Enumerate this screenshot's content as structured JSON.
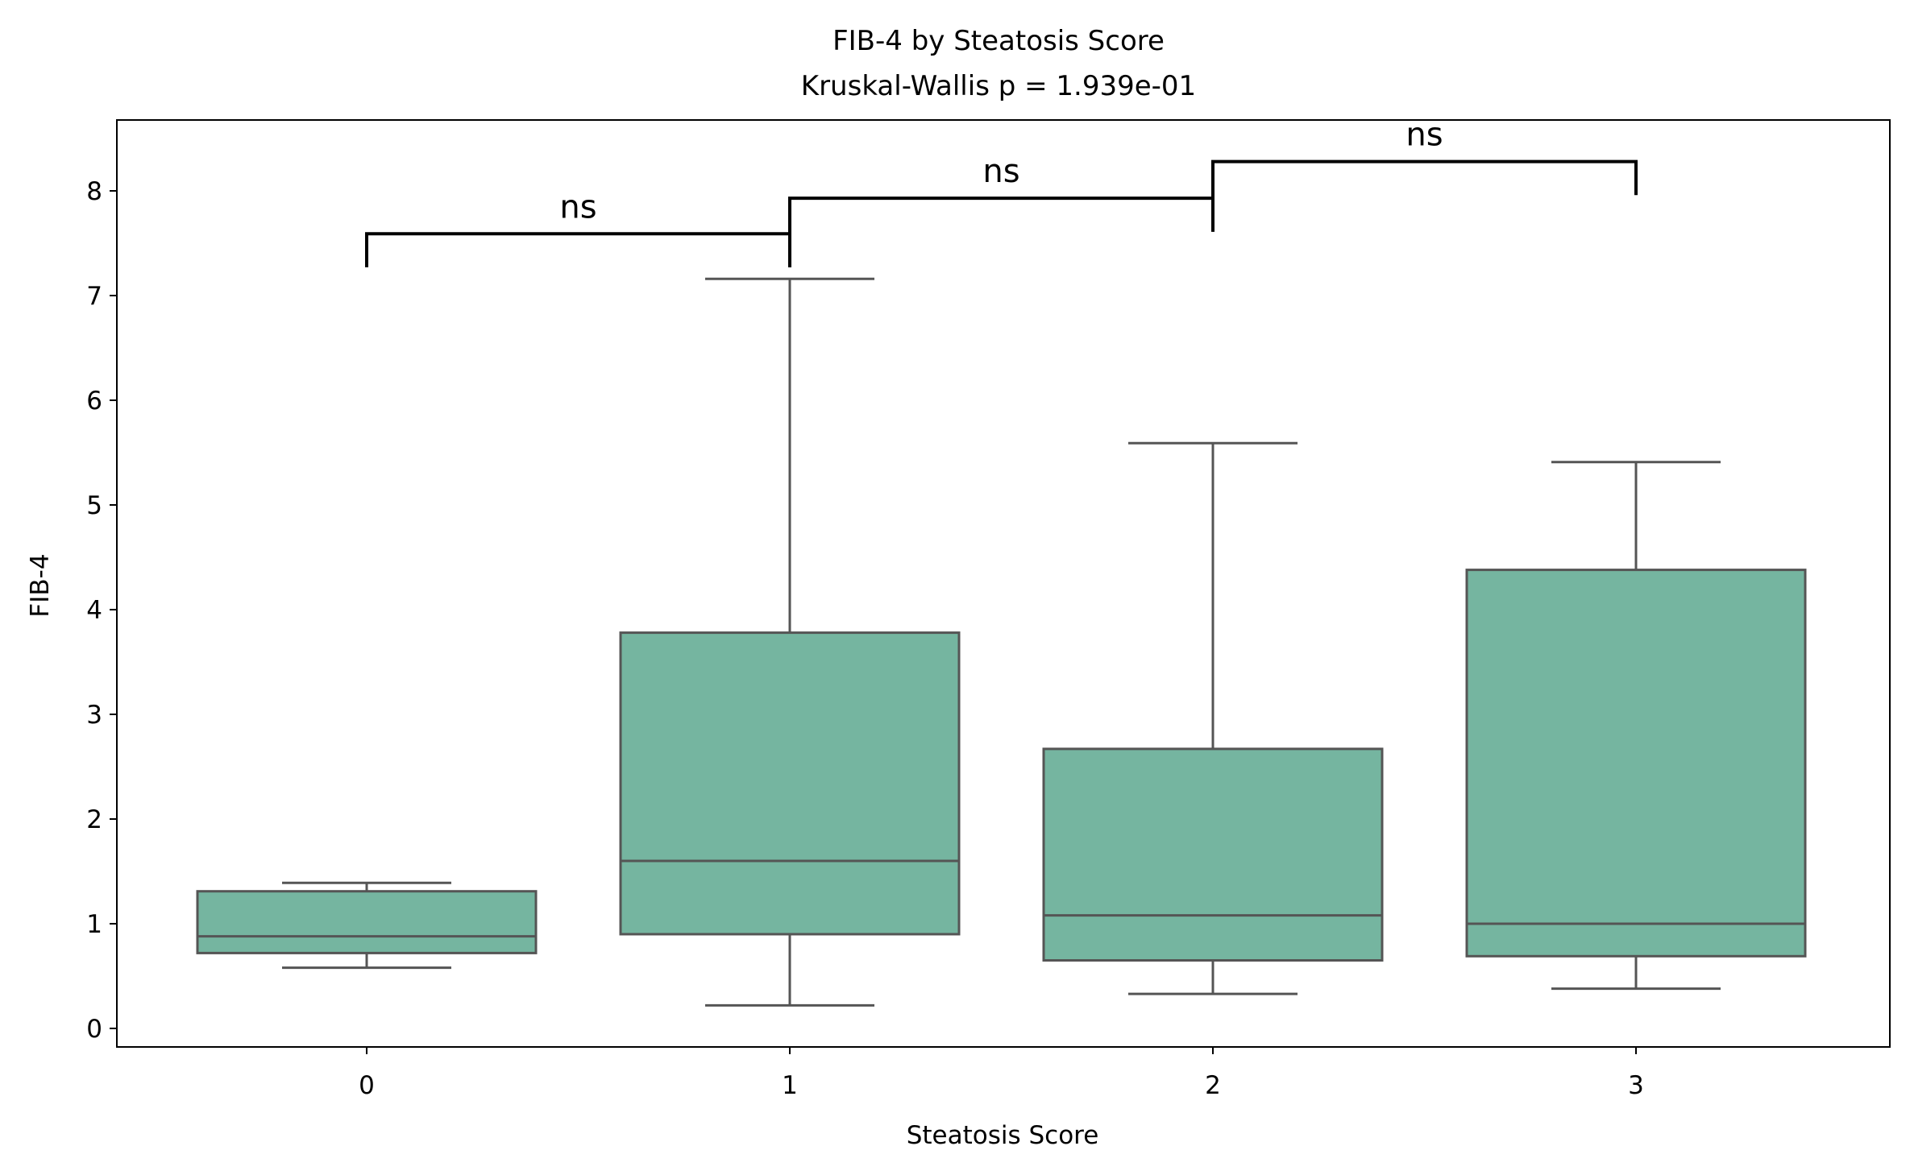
{
  "chart_data": {
    "type": "box",
    "title": "FIB-4 by Steatosis Score",
    "subtitle": "Kruskal-Wallis p = 1.939e-01",
    "xlabel": "Steatosis Score",
    "ylabel": "FIB-4",
    "categories": [
      "0",
      "1",
      "2",
      "3"
    ],
    "yticks": [
      "0",
      "1",
      "2",
      "3",
      "4",
      "5",
      "6",
      "7",
      "8"
    ],
    "ylim": [
      -0.18,
      8.68
    ],
    "grid": false,
    "legend": "none",
    "box_color": "#75b5a0",
    "edge_color": "#555555",
    "boxes": [
      {
        "category": "0",
        "whisker_low": 0.58,
        "q1": 0.72,
        "median": 0.88,
        "q3": 1.31,
        "whisker_high": 1.39
      },
      {
        "category": "1",
        "whisker_low": 0.22,
        "q1": 0.9,
        "median": 1.6,
        "q3": 3.78,
        "whisker_high": 7.16
      },
      {
        "category": "2",
        "whisker_low": 0.33,
        "q1": 0.65,
        "median": 1.08,
        "q3": 2.67,
        "whisker_high": 5.59
      },
      {
        "category": "3",
        "whisker_low": 0.38,
        "q1": 0.69,
        "median": 1.0,
        "q3": 4.38,
        "whisker_high": 5.41
      }
    ],
    "annotations": [
      {
        "from": 0,
        "to": 1,
        "y": 7.59,
        "left_tip": 7.27,
        "right_tip": 7.27,
        "label": "ns"
      },
      {
        "from": 1,
        "to": 2,
        "y": 7.93,
        "left_tip": 7.27,
        "right_tip": 7.61,
        "label": "ns"
      },
      {
        "from": 2,
        "to": 3,
        "y": 8.28,
        "left_tip": 7.61,
        "right_tip": 7.96,
        "label": "ns"
      }
    ]
  }
}
